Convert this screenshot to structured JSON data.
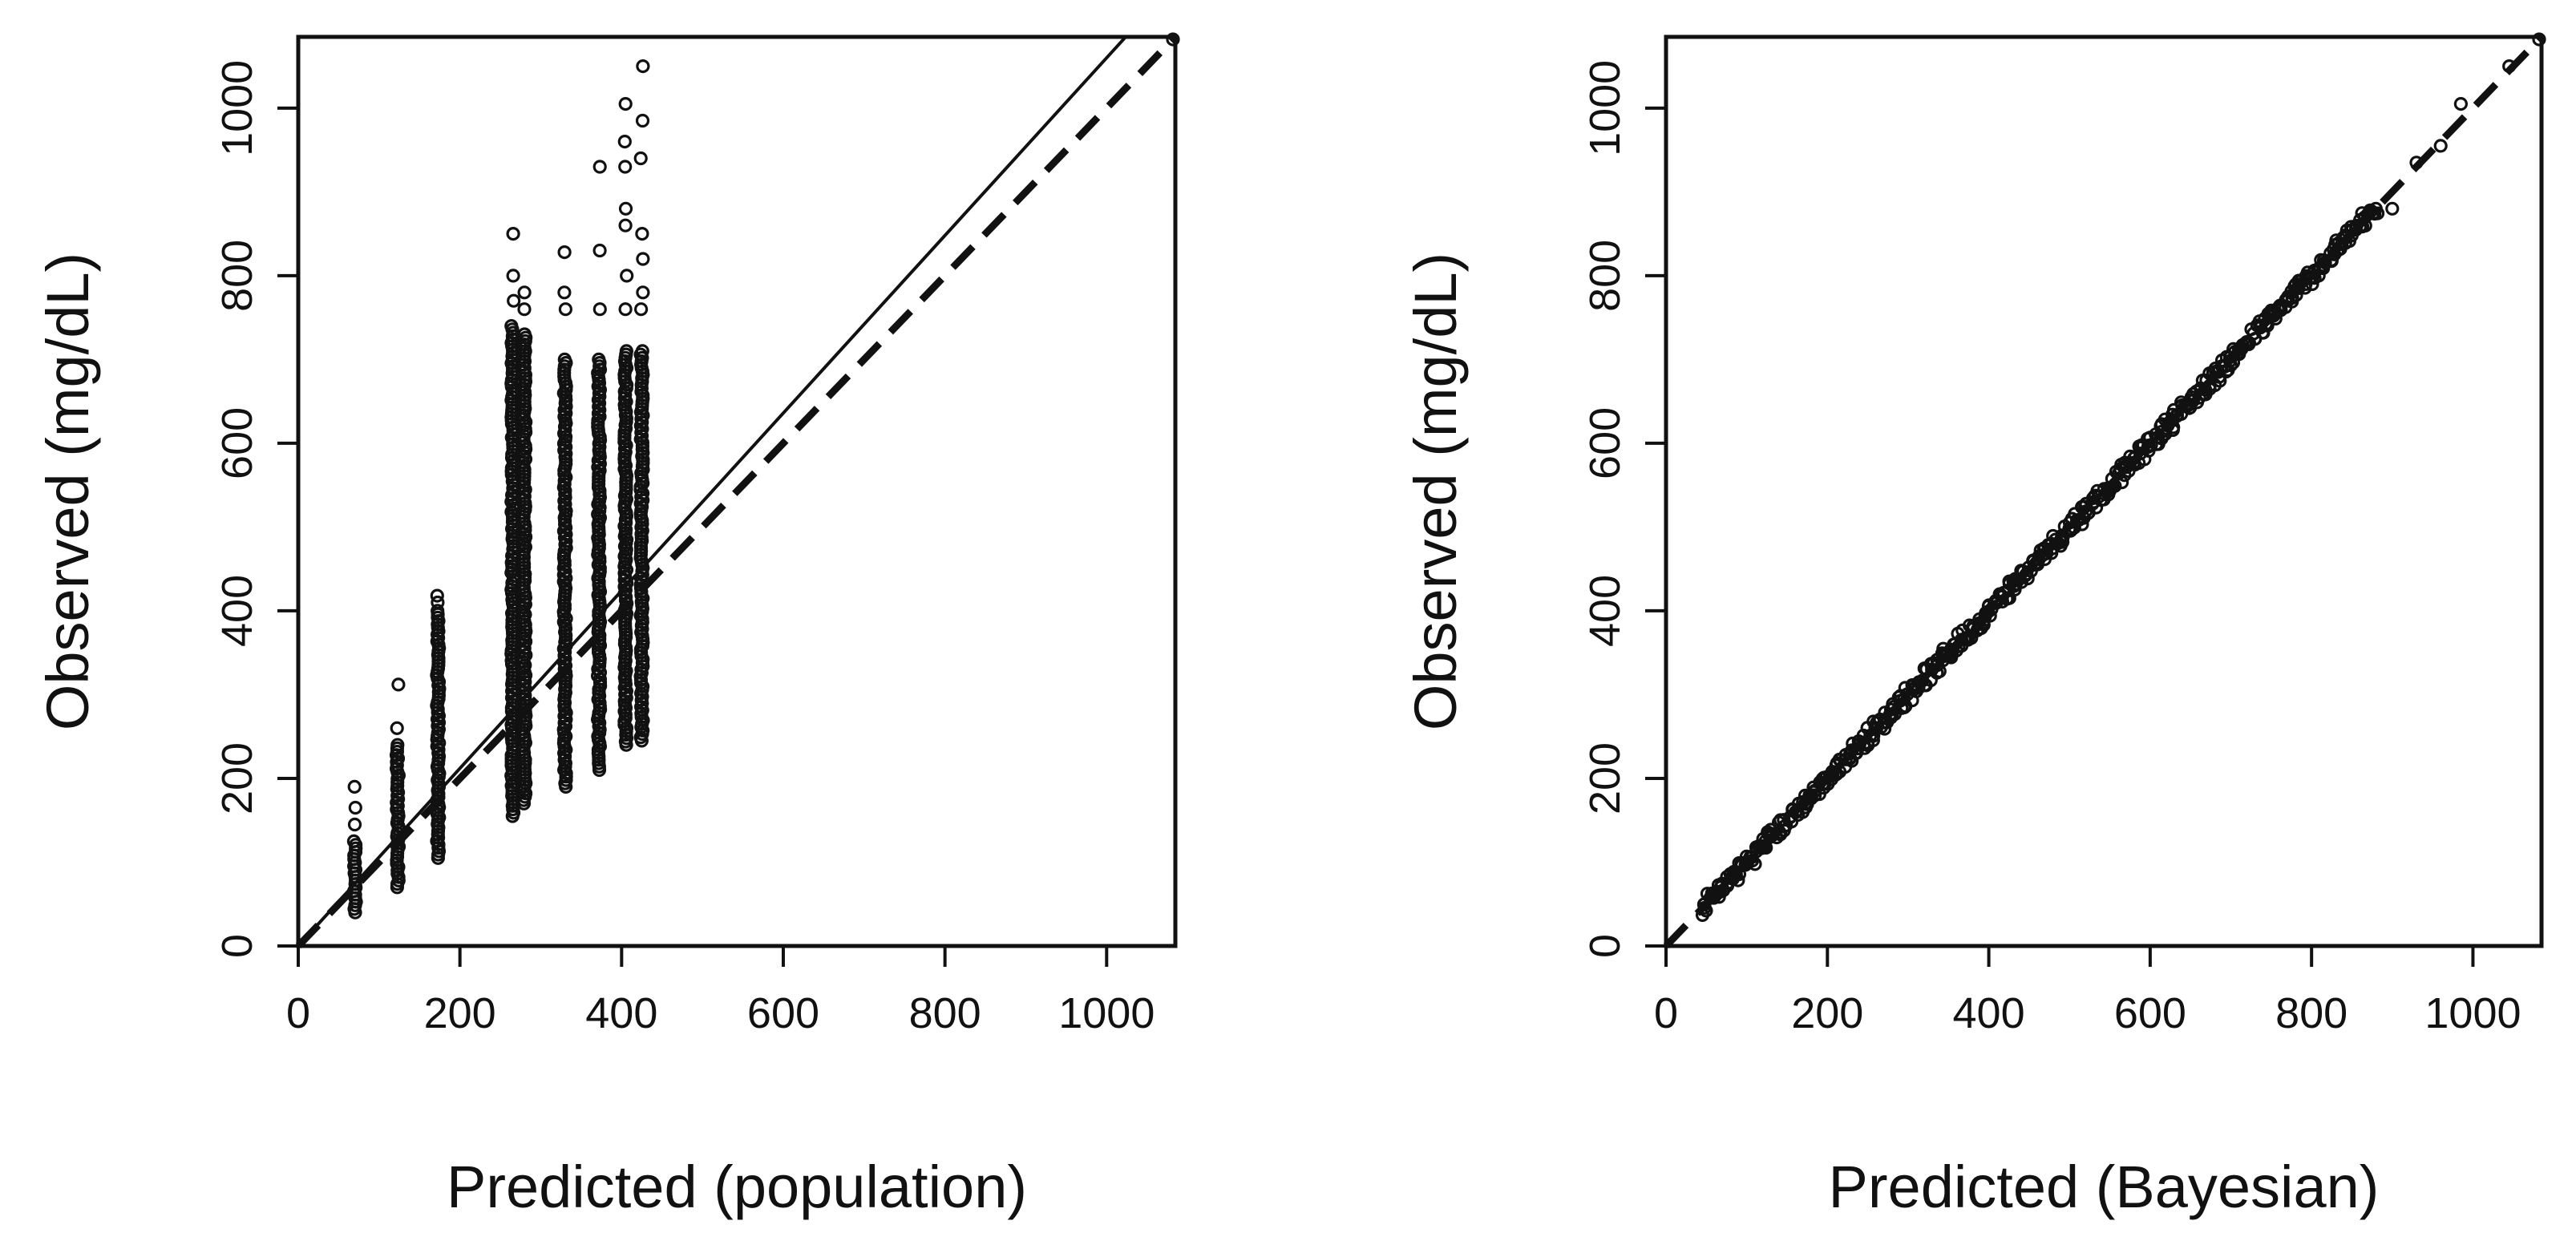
{
  "chart_data": [
    {
      "type": "scatter",
      "panel": "left",
      "xlabel": "Predicted (population)",
      "ylabel": "Observed (mg/dL)",
      "xlim": [
        0,
        1085
      ],
      "ylim": [
        0,
        1085
      ],
      "xticks": [
        0,
        200,
        400,
        600,
        800,
        1000
      ],
      "yticks": [
        0,
        200,
        400,
        600,
        800,
        1000
      ],
      "tick_labels_x": [
        "0",
        "200",
        "400",
        "600",
        "800",
        "1000"
      ],
      "tick_labels_y": [
        "0",
        "200",
        "400",
        "600",
        "800",
        "1000"
      ],
      "lines": [
        {
          "name": "regression",
          "style": "solid",
          "intercept": 0,
          "slope": 1.06
        },
        {
          "name": "identity",
          "style": "dashed",
          "intercept": 0,
          "slope": 1.0
        }
      ],
      "point_columns": [
        {
          "x": 70,
          "y_min": 40,
          "y_max": 125,
          "outliers": [
            145,
            165,
            190
          ]
        },
        {
          "x": 123,
          "y_min": 70,
          "y_max": 240,
          "outliers": [
            260,
            312
          ]
        },
        {
          "x": 173,
          "y_min": 105,
          "y_max": 400,
          "outliers": [
            410,
            418
          ]
        },
        {
          "x": 265,
          "y_min": 155,
          "y_max": 740,
          "outliers": [
            770,
            800,
            850
          ]
        },
        {
          "x": 280,
          "y_min": 170,
          "y_max": 730,
          "outliers": [
            760,
            780
          ]
        },
        {
          "x": 330,
          "y_min": 190,
          "y_max": 700,
          "outliers": [
            760,
            780,
            828
          ]
        },
        {
          "x": 372,
          "y_min": 210,
          "y_max": 700,
          "outliers": [
            760,
            830,
            930
          ]
        },
        {
          "x": 405,
          "y_min": 240,
          "y_max": 710,
          "outliers": [
            760,
            800,
            860,
            880,
            930,
            960,
            1005
          ]
        },
        {
          "x": 425,
          "y_min": 245,
          "y_max": 710,
          "outliers": [
            760,
            780,
            820,
            850,
            940,
            985,
            1050
          ]
        }
      ],
      "extra_points": [
        {
          "x": 1082,
          "y": 1082
        }
      ]
    },
    {
      "type": "scatter",
      "panel": "right",
      "xlabel": "Predicted (Bayesian)",
      "ylabel": "Observed (mg/dL)",
      "xlim": [
        0,
        1085
      ],
      "ylim": [
        0,
        1085
      ],
      "xticks": [
        0,
        200,
        400,
        600,
        800,
        1000
      ],
      "yticks": [
        0,
        200,
        400,
        600,
        800,
        1000
      ],
      "tick_labels_x": [
        "0",
        "200",
        "400",
        "600",
        "800",
        "1000"
      ],
      "tick_labels_y": [
        "0",
        "200",
        "400",
        "600",
        "800",
        "1000"
      ],
      "lines": [
        {
          "name": "identity",
          "style": "dashed",
          "intercept": 0,
          "slope": 1.0
        }
      ],
      "point_band": {
        "x_min": 45,
        "x_max": 880,
        "slope": 1.0,
        "intercept": 0,
        "spread": 10
      },
      "extra_points": [
        {
          "x": 900,
          "y": 880
        },
        {
          "x": 930,
          "y": 935
        },
        {
          "x": 960,
          "y": 955
        },
        {
          "x": 985,
          "y": 1005
        },
        {
          "x": 1045,
          "y": 1050
        },
        {
          "x": 1082,
          "y": 1082
        }
      ]
    }
  ]
}
